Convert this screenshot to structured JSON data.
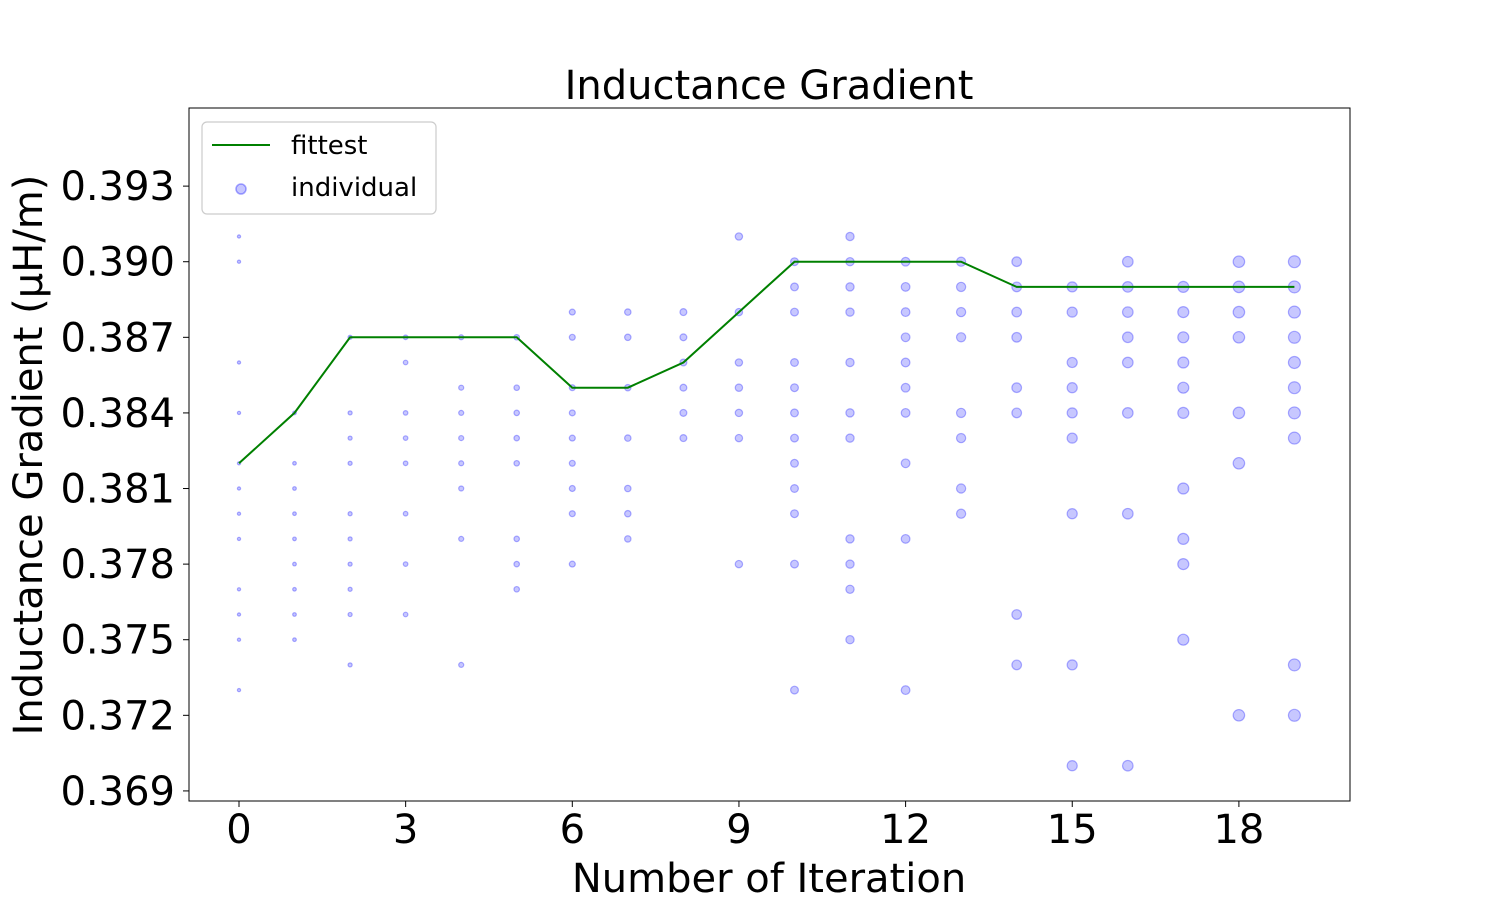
{
  "chart_data": {
    "type": "scatter",
    "title": "Inductance Gradient",
    "xlabel": "Number of Iteration",
    "ylabel": "Inductance Gradient (μH/m)",
    "xlim": [
      -0.9,
      20.0
    ],
    "ylim": [
      0.3686,
      0.3961
    ],
    "xticks": [
      0,
      3,
      6,
      9,
      12,
      15,
      18
    ],
    "yticks": [
      0.369,
      0.372,
      0.375,
      0.378,
      0.381,
      0.384,
      0.387,
      0.39,
      0.393
    ],
    "ytick_labels": [
      "0.369",
      "0.372",
      "0.375",
      "0.378",
      "0.381",
      "0.384",
      "0.387",
      "0.390",
      "0.393"
    ],
    "grid": false,
    "legend_position": "upper-left",
    "colors": {
      "fittest": "#008000",
      "individual": "#0000ff"
    },
    "series": [
      {
        "name": "fittest",
        "type": "line",
        "x": [
          0,
          1,
          2,
          3,
          4,
          5,
          6,
          7,
          8,
          9,
          10,
          11,
          12,
          13,
          14,
          15,
          16,
          17,
          18,
          19
        ],
        "y": [
          0.382,
          0.384,
          0.387,
          0.387,
          0.387,
          0.387,
          0.385,
          0.385,
          0.386,
          0.388,
          0.39,
          0.39,
          0.39,
          0.39,
          0.389,
          0.389,
          0.389,
          0.389,
          0.389,
          0.389
        ]
      },
      {
        "name": "individual",
        "type": "scatter",
        "points": [
          {
            "x": 0,
            "y": [
              0.391,
              0.39,
              0.386,
              0.384,
              0.382,
              0.381,
              0.38,
              0.379,
              0.377,
              0.376,
              0.375,
              0.373
            ]
          },
          {
            "x": 1,
            "y": [
              0.384,
              0.382,
              0.381,
              0.38,
              0.379,
              0.378,
              0.377,
              0.376,
              0.375
            ]
          },
          {
            "x": 2,
            "y": [
              0.387,
              0.384,
              0.383,
              0.382,
              0.38,
              0.379,
              0.378,
              0.377,
              0.376,
              0.374
            ]
          },
          {
            "x": 3,
            "y": [
              0.387,
              0.386,
              0.384,
              0.383,
              0.382,
              0.38,
              0.378,
              0.376
            ]
          },
          {
            "x": 4,
            "y": [
              0.387,
              0.385,
              0.384,
              0.383,
              0.382,
              0.381,
              0.379,
              0.374
            ]
          },
          {
            "x": 5,
            "y": [
              0.387,
              0.385,
              0.384,
              0.383,
              0.382,
              0.379,
              0.378,
              0.377
            ]
          },
          {
            "x": 6,
            "y": [
              0.388,
              0.387,
              0.385,
              0.384,
              0.383,
              0.382,
              0.381,
              0.38,
              0.378
            ]
          },
          {
            "x": 7,
            "y": [
              0.388,
              0.387,
              0.385,
              0.383,
              0.381,
              0.38,
              0.379
            ]
          },
          {
            "x": 8,
            "y": [
              0.388,
              0.387,
              0.386,
              0.385,
              0.384,
              0.383
            ]
          },
          {
            "x": 9,
            "y": [
              0.391,
              0.388,
              0.386,
              0.385,
              0.384,
              0.383,
              0.378
            ]
          },
          {
            "x": 10,
            "y": [
              0.39,
              0.389,
              0.388,
              0.386,
              0.385,
              0.384,
              0.383,
              0.382,
              0.381,
              0.38,
              0.378,
              0.373
            ]
          },
          {
            "x": 11,
            "y": [
              0.391,
              0.39,
              0.389,
              0.388,
              0.386,
              0.384,
              0.383,
              0.379,
              0.378,
              0.377,
              0.375
            ]
          },
          {
            "x": 12,
            "y": [
              0.39,
              0.389,
              0.388,
              0.387,
              0.386,
              0.385,
              0.384,
              0.382,
              0.379,
              0.373
            ]
          },
          {
            "x": 13,
            "y": [
              0.39,
              0.389,
              0.388,
              0.387,
              0.384,
              0.383,
              0.381,
              0.38
            ]
          },
          {
            "x": 14,
            "y": [
              0.39,
              0.389,
              0.388,
              0.387,
              0.385,
              0.384,
              0.376,
              0.374
            ]
          },
          {
            "x": 15,
            "y": [
              0.389,
              0.388,
              0.386,
              0.385,
              0.384,
              0.383,
              0.38,
              0.374,
              0.37
            ]
          },
          {
            "x": 16,
            "y": [
              0.39,
              0.389,
              0.388,
              0.387,
              0.386,
              0.384,
              0.38,
              0.37
            ]
          },
          {
            "x": 17,
            "y": [
              0.389,
              0.388,
              0.387,
              0.386,
              0.385,
              0.384,
              0.381,
              0.379,
              0.378,
              0.375
            ]
          },
          {
            "x": 18,
            "y": [
              0.39,
              0.389,
              0.388,
              0.387,
              0.384,
              0.382,
              0.372
            ]
          },
          {
            "x": 19,
            "y": [
              0.39,
              0.389,
              0.388,
              0.387,
              0.386,
              0.385,
              0.384,
              0.383,
              0.374,
              0.372
            ]
          }
        ]
      }
    ]
  }
}
